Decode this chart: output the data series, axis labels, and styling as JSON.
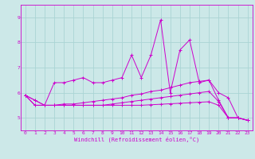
{
  "xlabel": "Windchill (Refroidissement éolien,°C)",
  "bg_color": "#cce8e8",
  "grid_color": "#aad4d4",
  "line_color": "#cc00cc",
  "x_values": [
    0,
    1,
    2,
    3,
    4,
    5,
    6,
    7,
    8,
    9,
    10,
    11,
    12,
    13,
    14,
    15,
    16,
    17,
    18,
    19,
    20,
    21,
    22,
    23
  ],
  "ylim": [
    4.5,
    9.5
  ],
  "xlim": [
    -0.5,
    23.5
  ],
  "yticks": [
    5,
    6,
    7,
    8,
    9
  ],
  "xticks": [
    0,
    1,
    2,
    3,
    4,
    5,
    6,
    7,
    8,
    9,
    10,
    11,
    12,
    13,
    14,
    15,
    16,
    17,
    18,
    19,
    20,
    21,
    22,
    23
  ],
  "series": [
    [
      5.9,
      5.7,
      5.5,
      6.4,
      6.4,
      6.5,
      6.6,
      6.4,
      6.4,
      6.5,
      6.6,
      7.5,
      6.6,
      7.5,
      8.9,
      6.0,
      7.7,
      8.1,
      6.4,
      6.5,
      6.0,
      5.8,
      5.0,
      4.9
    ],
    [
      5.9,
      5.7,
      5.5,
      5.5,
      5.55,
      5.55,
      5.6,
      5.65,
      5.7,
      5.75,
      5.8,
      5.9,
      5.95,
      6.05,
      6.1,
      6.2,
      6.3,
      6.4,
      6.45,
      6.5,
      5.7,
      5.0,
      5.0,
      4.9
    ],
    [
      5.9,
      5.5,
      5.5,
      5.5,
      5.5,
      5.5,
      5.5,
      5.5,
      5.5,
      5.5,
      5.5,
      5.5,
      5.5,
      5.52,
      5.54,
      5.56,
      5.58,
      5.6,
      5.62,
      5.64,
      5.5,
      5.0,
      5.0,
      4.9
    ],
    [
      5.9,
      5.5,
      5.5,
      5.5,
      5.5,
      5.5,
      5.5,
      5.5,
      5.5,
      5.55,
      5.6,
      5.65,
      5.7,
      5.75,
      5.8,
      5.85,
      5.9,
      5.95,
      6.0,
      6.05,
      5.65,
      5.0,
      5.0,
      4.9
    ]
  ]
}
